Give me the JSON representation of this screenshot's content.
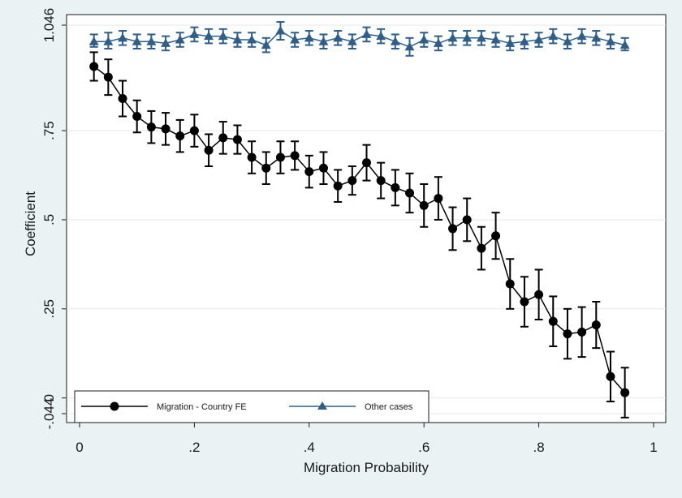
{
  "chart_data": {
    "type": "line",
    "xlabel": "Migration Probability",
    "ylabel": "Coefficient",
    "xlim": [
      0,
      1
    ],
    "ylim": [
      -0.044,
      1.046
    ],
    "x_ticks": [
      {
        "value": 0,
        "label": "0"
      },
      {
        "value": 0.2,
        "label": ".2"
      },
      {
        "value": 0.4,
        "label": ".4"
      },
      {
        "value": 0.6,
        "label": ".6"
      },
      {
        "value": 0.8,
        "label": ".8"
      },
      {
        "value": 1,
        "label": "1"
      }
    ],
    "y_ticks": [
      {
        "value": -0.044,
        "label": "-.044"
      },
      {
        "value": 0,
        "label": "0"
      },
      {
        "value": 0.25,
        "label": ".25"
      },
      {
        "value": 0.5,
        "label": ".5"
      },
      {
        "value": 0.75,
        "label": ".75"
      },
      {
        "value": 1.046,
        "label": "1.046"
      }
    ],
    "grid": "horizontal",
    "legend_placement": "bottom-left",
    "x": [
      0.025,
      0.05,
      0.075,
      0.1,
      0.125,
      0.15,
      0.175,
      0.2,
      0.225,
      0.25,
      0.275,
      0.3,
      0.325,
      0.35,
      0.375,
      0.4,
      0.425,
      0.45,
      0.475,
      0.5,
      0.525,
      0.55,
      0.575,
      0.6,
      0.625,
      0.65,
      0.675,
      0.7,
      0.725,
      0.75,
      0.775,
      0.8,
      0.825,
      0.85,
      0.875,
      0.9,
      0.925,
      0.95
    ],
    "series": [
      {
        "name": "Migration - Country FE",
        "color": "#000000",
        "marker": "circle",
        "values": [
          0.93,
          0.9,
          0.84,
          0.79,
          0.76,
          0.755,
          0.735,
          0.75,
          0.695,
          0.73,
          0.725,
          0.675,
          0.645,
          0.675,
          0.68,
          0.635,
          0.645,
          0.595,
          0.61,
          0.66,
          0.61,
          0.59,
          0.575,
          0.54,
          0.56,
          0.475,
          0.5,
          0.42,
          0.455,
          0.32,
          0.27,
          0.29,
          0.215,
          0.18,
          0.185,
          0.205,
          0.06,
          0.015
        ],
        "lower": [
          0.89,
          0.85,
          0.79,
          0.745,
          0.715,
          0.71,
          0.69,
          0.705,
          0.65,
          0.685,
          0.685,
          0.63,
          0.6,
          0.63,
          0.64,
          0.59,
          0.6,
          0.55,
          0.57,
          0.61,
          0.56,
          0.54,
          0.52,
          0.48,
          0.5,
          0.415,
          0.44,
          0.36,
          0.39,
          0.25,
          0.2,
          0.22,
          0.145,
          0.11,
          0.115,
          0.14,
          -0.01,
          -0.055
        ],
        "upper": [
          0.97,
          0.95,
          0.89,
          0.835,
          0.805,
          0.8,
          0.78,
          0.795,
          0.74,
          0.775,
          0.765,
          0.72,
          0.69,
          0.72,
          0.72,
          0.68,
          0.69,
          0.64,
          0.65,
          0.71,
          0.66,
          0.64,
          0.63,
          0.6,
          0.62,
          0.535,
          0.56,
          0.48,
          0.52,
          0.39,
          0.34,
          0.36,
          0.285,
          0.25,
          0.255,
          0.27,
          0.13,
          0.085
        ]
      },
      {
        "name": "Other cases",
        "color": "#2e5f8a",
        "marker": "triangle",
        "values": [
          1.0,
          1.0,
          1.01,
          1.0,
          1.0,
          0.995,
          1.005,
          1.02,
          1.015,
          1.015,
          1.005,
          1.005,
          0.99,
          1.03,
          1.005,
          1.01,
          1.0,
          1.01,
          1.0,
          1.02,
          1.015,
          1.0,
          0.985,
          1.005,
          0.995,
          1.01,
          1.01,
          1.01,
          1.005,
          0.995,
          1.0,
          1.005,
          1.015,
          1.0,
          1.015,
          1.01,
          1.0,
          0.99
        ],
        "lower": [
          0.985,
          0.98,
          0.99,
          0.98,
          0.98,
          0.975,
          0.985,
          1.0,
          0.995,
          0.995,
          0.985,
          0.985,
          0.97,
          1.005,
          0.985,
          0.99,
          0.98,
          0.99,
          0.98,
          1.0,
          0.995,
          0.98,
          0.96,
          0.985,
          0.975,
          0.99,
          0.99,
          0.99,
          0.985,
          0.975,
          0.98,
          0.985,
          0.995,
          0.98,
          0.995,
          0.99,
          0.98,
          0.975
        ],
        "upper": [
          1.02,
          1.025,
          1.03,
          1.02,
          1.02,
          1.015,
          1.025,
          1.04,
          1.035,
          1.035,
          1.025,
          1.025,
          1.01,
          1.055,
          1.025,
          1.03,
          1.02,
          1.03,
          1.02,
          1.04,
          1.035,
          1.02,
          1.01,
          1.025,
          1.015,
          1.03,
          1.03,
          1.03,
          1.025,
          1.015,
          1.02,
          1.025,
          1.035,
          1.02,
          1.035,
          1.03,
          1.02,
          1.01
        ]
      }
    ],
    "background_color": "#eaf2f3",
    "plot_color": "#ffffff"
  }
}
